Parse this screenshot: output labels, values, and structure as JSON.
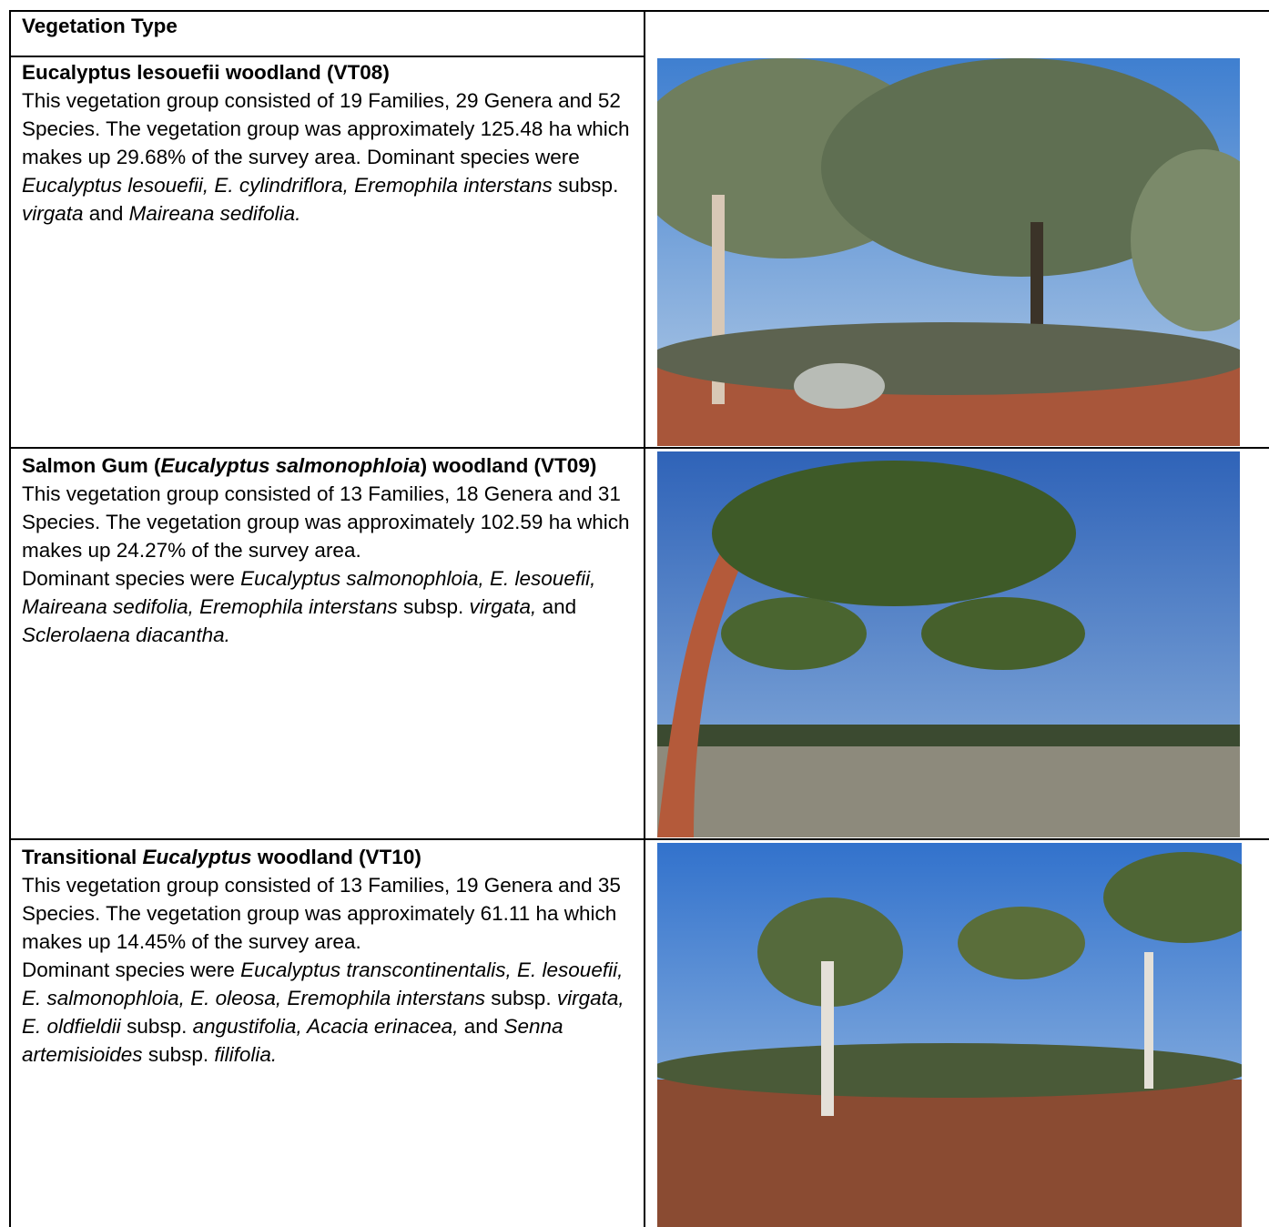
{
  "table": {
    "header": "Vegetation Type",
    "rows": [
      {
        "title": [
          "Eucalyptus lesouefii woodland (VT08)"
        ],
        "paragraphs": [
          [
            "This vegetation group consisted of 19 Families, 29 Genera and 52 Species. The vegetation group was approximately 125.48 ha which makes up 29.68% of the survey area.  Dominant species were ",
            {
              "italic": "Eucalyptus lesouefii, E. cylindriflora, Eremophila interstans"
            },
            " subsp. ",
            {
              "italic": "virgata"
            },
            " and ",
            {
              "italic": "Maireana sedifolia."
            }
          ]
        ]
      },
      {
        "title": [
          "Salmon Gum (",
          {
            "italic": "Eucalyptus salmonophloia"
          },
          ") woodland (VT09)"
        ],
        "paragraphs": [
          [
            "This vegetation group consisted of 13 Families, 18 Genera and 31 Species. The vegetation group was approximately 102.59 ha which makes up 24.27% of the survey area."
          ],
          [
            "Dominant species were ",
            {
              "italic": "Eucalyptus salmonophloia, E. lesouefii, Maireana sedifolia, Eremophila interstans"
            },
            " subsp. ",
            {
              "italic": "virgata,"
            },
            " and ",
            {
              "italic": "Sclerolaena diacantha."
            }
          ]
        ]
      },
      {
        "title": [
          "Transitional ",
          {
            "italic": "Eucalyptus"
          },
          " woodland (VT10)"
        ],
        "paragraphs": [
          [
            "This vegetation group consisted of 13 Families, 19 Genera and 35 Species. The vegetation group was approximately 61.11 ha which makes up 14.45% of the survey area."
          ],
          [
            "Dominant species were ",
            {
              "italic": "Eucalyptus transcontinentalis, E. lesouefii, E. salmonophloia, E. oleosa, Eremophila interstans"
            },
            " subsp. ",
            {
              "italic": "virgata, E. oldfieldii"
            },
            " subsp. ",
            {
              "italic": "angustifolia, Acacia erinacea,"
            },
            " and ",
            {
              "italic": "Senna artemisioides"
            },
            " subsp. ",
            {
              "italic": "filifolia."
            }
          ]
        ]
      }
    ]
  }
}
